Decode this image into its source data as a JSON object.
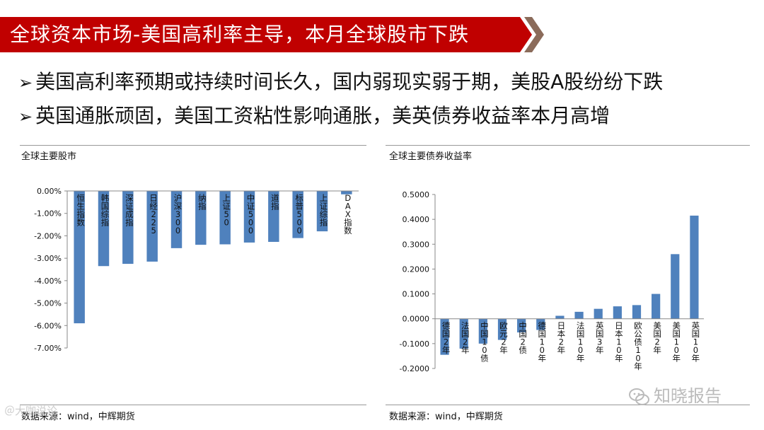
{
  "header": {
    "title": "全球资本市场-美国高利率主导，本月全球股市下跌",
    "banner_color": "#C00000",
    "accent_color": "#8B6B5A"
  },
  "bullets": [
    {
      "arrow": "➢",
      "text": "美国高利率预期或持续时间长久，国内弱现实弱于期，美股A股纷纷下跌"
    },
    {
      "arrow": "➢",
      "text": "英国通胀顽固，美国工资粘性影响通胀，美英债券收益率本月高增"
    }
  ],
  "left_panel": {
    "title": "全球主要股市",
    "source": "数据来源：wind，中辉期货"
  },
  "right_panel": {
    "title": "全球主要债券收益率",
    "source": "数据来源：wind，中辉期货"
  },
  "watermark": {
    "text": "知晓报告",
    "left_text": "＠大咖说论"
  },
  "chart_data": [
    {
      "type": "bar",
      "title": "全球主要股市",
      "categories": [
        "恒生指数",
        "韩国综指",
        "深证成指",
        "日经225",
        "沪深300",
        "纳指",
        "上证50",
        "中证500",
        "道指",
        "标普500",
        "上证综指",
        "DAX指数"
      ],
      "values": [
        -5.9,
        -3.35,
        -3.25,
        -3.15,
        -2.55,
        -2.4,
        -2.38,
        -2.3,
        -2.27,
        -2.1,
        -1.8,
        -0.15
      ],
      "ylim": [
        -7,
        0
      ],
      "yticks": [
        "0.00%",
        "-1.00%",
        "-2.00%",
        "-3.00%",
        "-4.00%",
        "-5.00%",
        "-6.00%",
        "-7.00%"
      ],
      "bar_color": "#4F81BD",
      "xlabel": "",
      "ylabel": "",
      "grid": false,
      "legend": "none"
    },
    {
      "type": "bar",
      "title": "全球主要债券收益率",
      "categories": [
        "德国2年",
        "法国2年",
        "中国10债",
        "欧元2年",
        "中国2债",
        "德国10年",
        "日本2年",
        "法国10年",
        "英国3年",
        "日本10年",
        "欧公债10年",
        "美国2年",
        "美国10年",
        "英国10年"
      ],
      "values": [
        -0.145,
        -0.12,
        -0.1,
        -0.085,
        -0.055,
        -0.045,
        0.012,
        0.028,
        0.04,
        0.05,
        0.055,
        0.1,
        0.26,
        0.415
      ],
      "ylim": [
        -0.2,
        0.5
      ],
      "yticks": [
        "0.5000",
        "0.4000",
        "0.3000",
        "0.2000",
        "0.1000",
        "0.0000",
        "-0.1000",
        "-0.2000"
      ],
      "bar_color": "#4F81BD",
      "xlabel": "",
      "ylabel": "",
      "grid": false,
      "legend": "none"
    }
  ]
}
